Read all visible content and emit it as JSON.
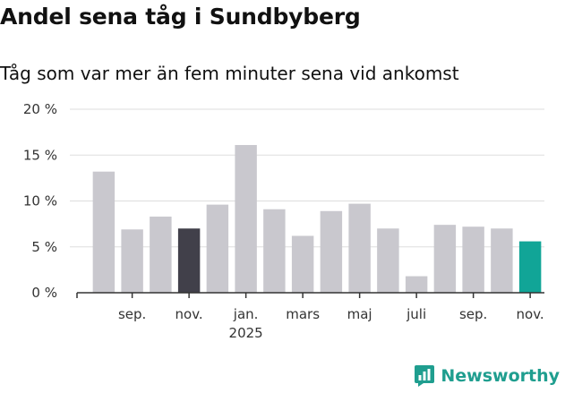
{
  "chart_data": {
    "type": "bar",
    "title": "Andel sena tåg i Sundbyberg",
    "subtitle": "Tåg som var mer än fem minuter sena vid ankomst",
    "ylabel": "",
    "xlabel": "",
    "ylim": [
      0,
      20
    ],
    "y_ticks": [
      0,
      5,
      10,
      15,
      20
    ],
    "y_tick_labels": [
      "0 %",
      "5 %",
      "10 %",
      "15 %",
      "20 %"
    ],
    "grid": true,
    "categories": [
      "2024-08",
      "2024-09",
      "2024-10",
      "2024-11",
      "2024-12",
      "2025-01",
      "2025-02",
      "2025-03",
      "2025-04",
      "2025-05",
      "2025-06",
      "2025-07",
      "2025-08",
      "2025-09",
      "2025-10",
      "2025-11"
    ],
    "values": [
      13.2,
      6.9,
      8.3,
      7.0,
      9.6,
      16.1,
      9.1,
      6.2,
      8.9,
      9.7,
      7.0,
      1.8,
      7.4,
      7.2,
      7.0,
      5.6
    ],
    "x_tick_labels": [
      {
        "index": 1,
        "label": "sep."
      },
      {
        "index": 3,
        "label": "nov."
      },
      {
        "index": 5,
        "label": "jan.",
        "sublabel": "2025"
      },
      {
        "index": 7,
        "label": "mars"
      },
      {
        "index": 9,
        "label": "maj"
      },
      {
        "index": 11,
        "label": "juli"
      },
      {
        "index": 13,
        "label": "sep."
      },
      {
        "index": 15,
        "label": "nov."
      }
    ],
    "colors": {
      "default": "#c9c8ce",
      "highlight_previous_year": "#41404a",
      "highlight_latest": "#11a597",
      "grid": "#dedede",
      "axis": "#333333"
    },
    "highlight": {
      "3": "highlight_previous_year",
      "15": "highlight_latest"
    }
  },
  "brand": {
    "name": "Newsworthy",
    "icon": "newsworthy-chart-icon",
    "color": "#1f9e8f"
  }
}
